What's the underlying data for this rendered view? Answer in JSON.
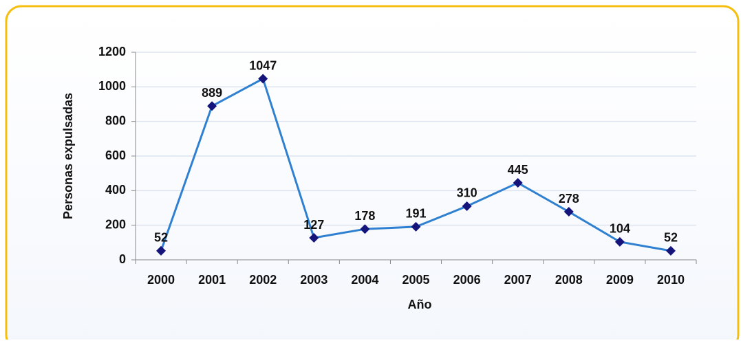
{
  "chart_data": {
    "type": "line",
    "categories": [
      "2000",
      "2001",
      "2002",
      "2003",
      "2004",
      "2005",
      "2006",
      "2007",
      "2008",
      "2009",
      "2010"
    ],
    "series": [
      {
        "name": "Personas expulsadas",
        "color": "#2f80d0",
        "marker_color": "#14147a",
        "values": [
          52,
          889,
          1047,
          127,
          178,
          191,
          310,
          445,
          278,
          104,
          52
        ]
      }
    ],
    "xlabel": "Año",
    "ylabel": "Personas expulsadas",
    "ylim": [
      0,
      1200
    ],
    "yticks": [
      0,
      200,
      400,
      600,
      800,
      1000,
      1200
    ],
    "grid": true
  }
}
